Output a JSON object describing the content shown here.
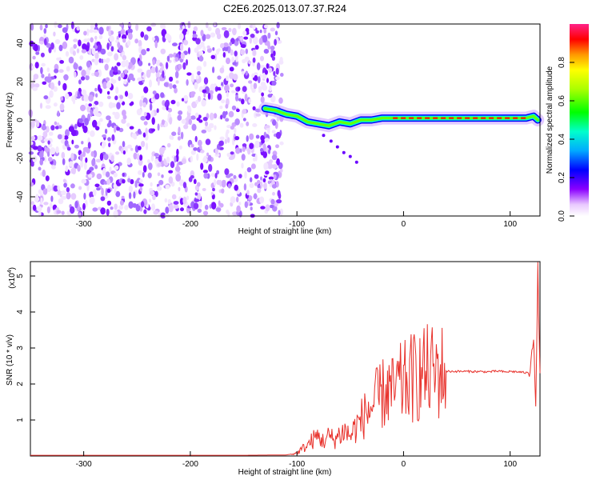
{
  "page": {
    "title": "C2E6.2025.013.07.37.R24"
  },
  "chart_data": [
    {
      "type": "heatmap",
      "title": "C2E6.2025.013.07.37.R24",
      "xlabel": "Height of straight line (km)",
      "ylabel": "Frequency (Hz)",
      "xlim": [
        -350,
        128
      ],
      "ylim": [
        -50,
        50
      ],
      "xticks": [
        -300,
        -200,
        -100,
        0,
        100
      ],
      "yticks": [
        -40,
        -20,
        0,
        20,
        40
      ],
      "noise_region_x": [
        -350,
        -120
      ],
      "signal_ridge": {
        "x": [
          -130,
          -120,
          -110,
          -100,
          -90,
          -80,
          -70,
          -60,
          -50,
          -40,
          -30,
          -20,
          -10,
          0,
          20,
          40,
          60,
          80,
          100,
          115,
          122,
          126
        ],
        "y": [
          6,
          5,
          3,
          2,
          -1,
          -2,
          -3,
          -1,
          -2,
          0,
          0,
          1,
          1,
          1,
          1,
          1,
          1,
          1,
          1,
          1,
          2,
          0
        ]
      },
      "colorbar": {
        "label": "Normalized spectral amplitude",
        "range": [
          0,
          1
        ],
        "ticks": [
          0,
          0.2,
          0.4,
          0.6,
          0.8
        ]
      }
    },
    {
      "type": "line",
      "xlabel": "Height of straight line (km)",
      "ylabel": "SNR (10 * v/v)",
      "scale_label": "(x10",
      "scale_exp": "4",
      "xlim": [
        -350,
        128
      ],
      "ylim": [
        0,
        5.4
      ],
      "xticks": [
        -300,
        -200,
        -100,
        0,
        100
      ],
      "yticks": [
        1,
        2,
        3,
        4,
        5
      ],
      "line_color": "#e8322c",
      "series": [
        {
          "x": [
            -350,
            -250,
            -150,
            -110,
            -100,
            -95,
            -90,
            -85,
            -80,
            -75,
            -70,
            -65,
            -60,
            -55,
            -50,
            -45,
            -40,
            -35,
            -30,
            -25,
            -20,
            -15,
            -10,
            -5,
            0,
            5,
            10,
            20,
            30,
            40,
            60,
            80,
            90,
            95,
            100,
            110,
            118,
            122,
            124,
            126,
            128
          ],
          "y": [
            0.02,
            0.02,
            0.02,
            0.03,
            0.08,
            0.2,
            0.3,
            0.45,
            0.55,
            0.4,
            0.55,
            0.45,
            0.6,
            0.7,
            0.55,
            0.8,
            1.0,
            1.2,
            1.35,
            1.55,
            1.7,
            1.85,
            1.75,
            1.95,
            2.0,
            2.1,
            2.2,
            2.3,
            2.33,
            2.35,
            2.35,
            2.34,
            2.36,
            2.33,
            2.35,
            2.33,
            2.3,
            3.4,
            1.2,
            5.2,
            2.3
          ]
        }
      ]
    }
  ]
}
